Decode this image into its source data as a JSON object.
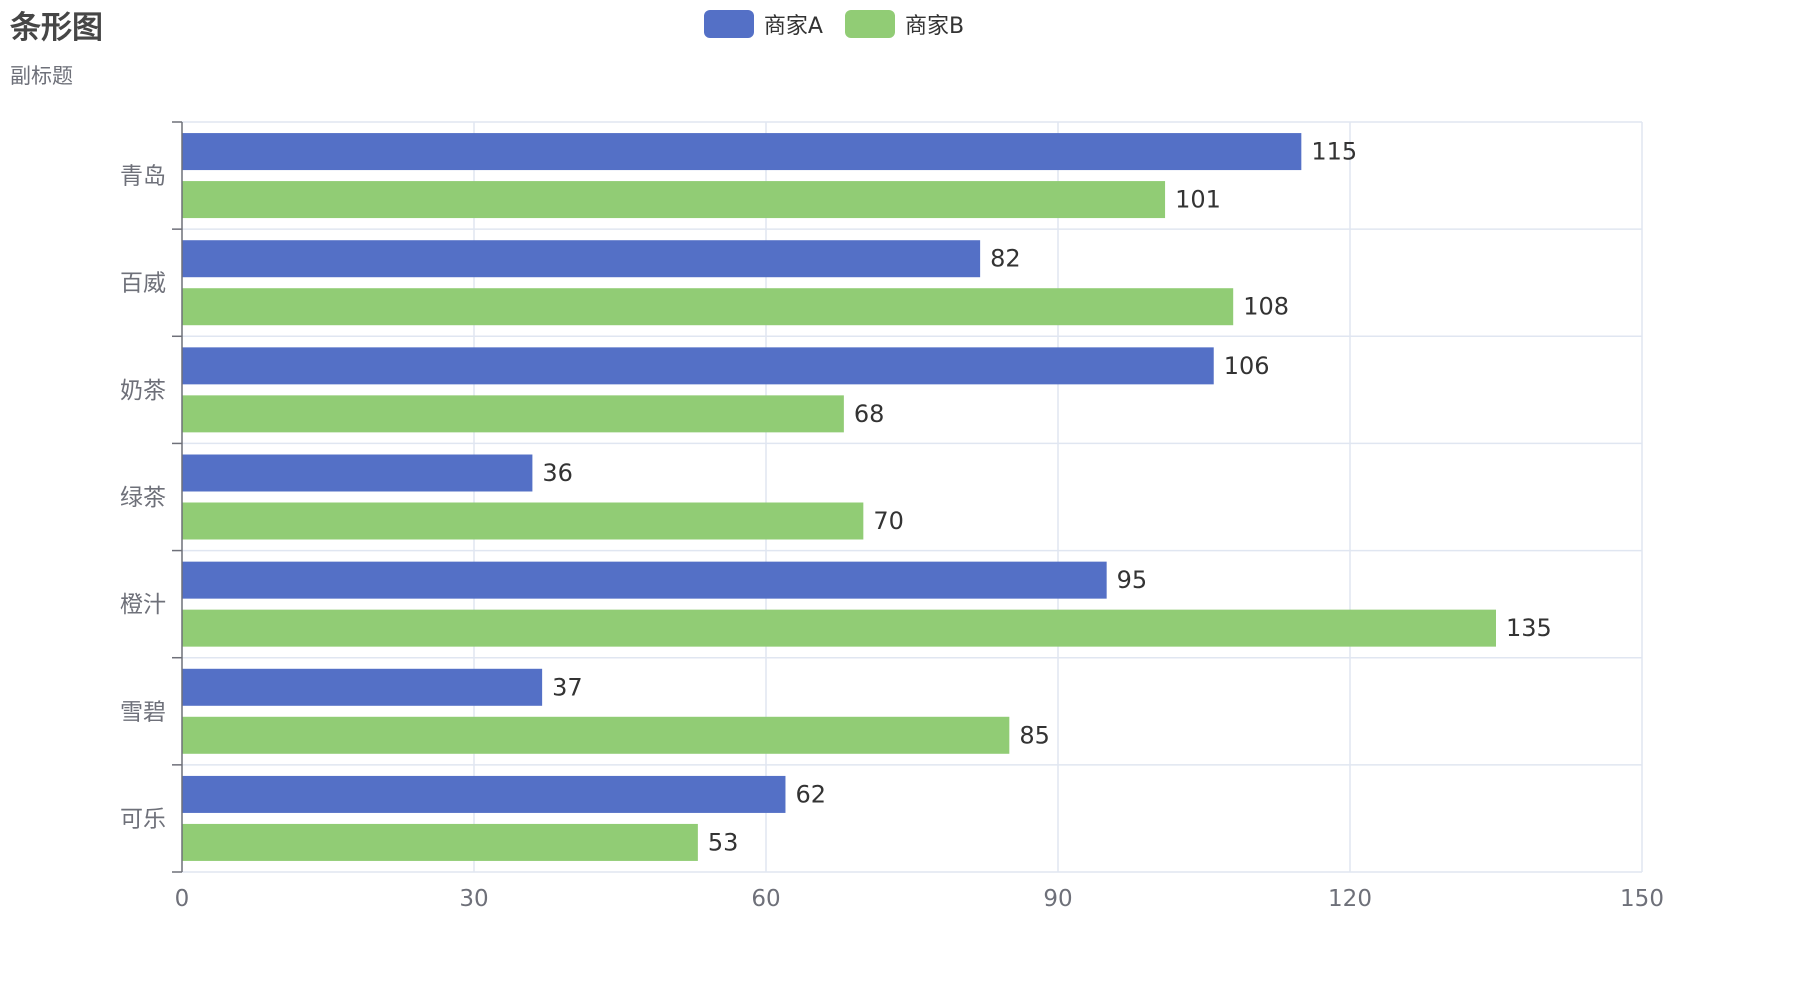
{
  "chart_data": {
    "type": "bar",
    "orientation": "horizontal",
    "title": "条形图",
    "subtitle": "副标题",
    "categories": [
      "可乐",
      "雪碧",
      "橙汁",
      "绿茶",
      "奶茶",
      "百威",
      "青岛"
    ],
    "series": [
      {
        "name": "商家A",
        "color": "#5470c6",
        "values": [
          62,
          37,
          95,
          36,
          106,
          82,
          115
        ]
      },
      {
        "name": "商家B",
        "color": "#91cc75",
        "values": [
          53,
          85,
          135,
          70,
          68,
          108,
          101
        ]
      }
    ],
    "xlim": [
      0,
      150
    ],
    "x_ticks": [
      0,
      30,
      60,
      90,
      120,
      150
    ],
    "legend_position": "top-center",
    "grid": true,
    "data_labels": true
  }
}
